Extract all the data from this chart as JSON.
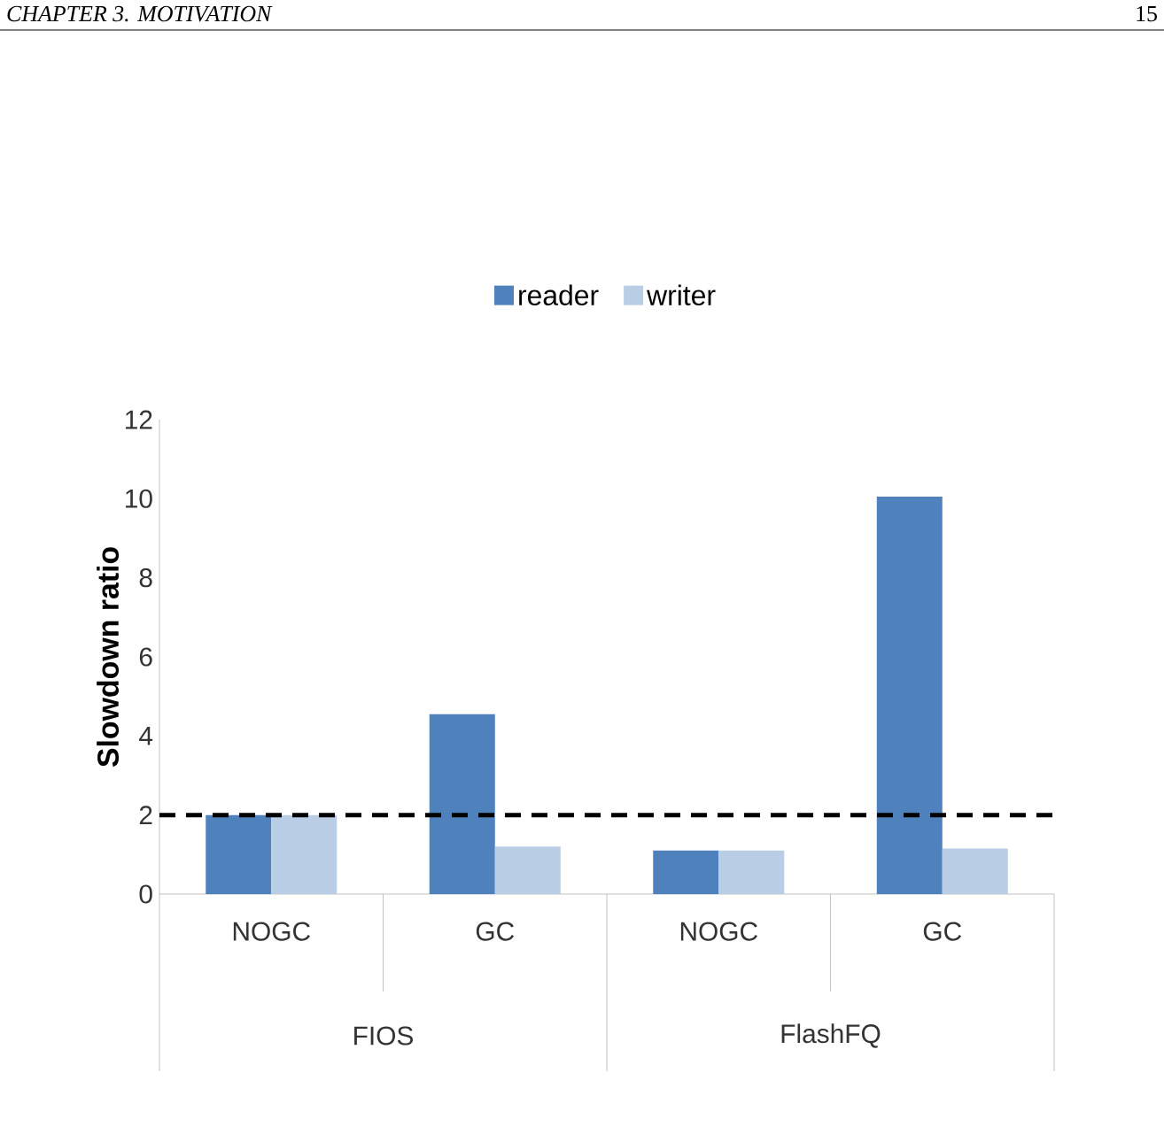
{
  "chart_data": {
    "type": "bar",
    "ylabel": "Slowdown ratio",
    "categories": [
      "NOGC",
      "GC",
      "NOGC",
      "GC"
    ],
    "series": [
      {
        "name": "reader",
        "color": "#4f81bd",
        "values": [
          2.0,
          4.55,
          1.1,
          10.05
        ]
      },
      {
        "name": "writer",
        "color": "#b9cde5",
        "values": [
          2.0,
          1.2,
          1.1,
          1.15
        ]
      }
    ],
    "ylim": [
      0,
      12
    ],
    "yticks": [
      0,
      2,
      4,
      6,
      8,
      10,
      12
    ],
    "ref_lines": [
      {
        "axis": "y",
        "value": 2,
        "color": "#000000",
        "line_style": "dashed"
      }
    ],
    "legend": "top",
    "annotations": [
      "FIOS",
      "FlashFQ",
      "CHAPTER 3.  MOTIVATION",
      "15"
    ]
  }
}
